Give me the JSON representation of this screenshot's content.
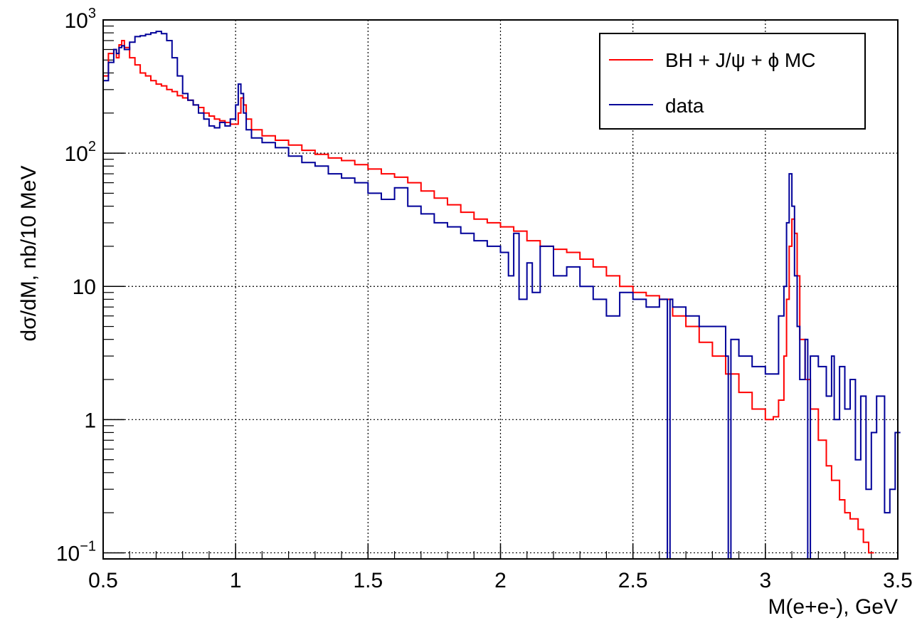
{
  "chart_data": {
    "type": "line",
    "title": "",
    "xlabel": "M(e+e-), GeV",
    "ylabel": "dσ/dM, nb/10 MeV",
    "xlim": [
      0.5,
      3.5
    ],
    "ylim": [
      0.09,
      1000
    ],
    "yscale": "log",
    "grid": true,
    "legend_position": "top-right",
    "x_ticks": [
      {
        "value": 0.5,
        "label": "0.5"
      },
      {
        "value": 1.0,
        "label": "1"
      },
      {
        "value": 1.5,
        "label": "1.5"
      },
      {
        "value": 2.0,
        "label": "2"
      },
      {
        "value": 2.5,
        "label": "2.5"
      },
      {
        "value": 3.0,
        "label": "3"
      },
      {
        "value": 3.5,
        "label": "3.5"
      }
    ],
    "y_ticks": [
      {
        "value": 0.1,
        "base": "10",
        "exp": "−1",
        "label": ""
      },
      {
        "value": 1,
        "base": "",
        "exp": "",
        "label": "1"
      },
      {
        "value": 10,
        "base": "",
        "exp": "",
        "label": "10"
      },
      {
        "value": 100,
        "base": "10",
        "exp": "2",
        "label": ""
      },
      {
        "value": 1000,
        "base": "10",
        "exp": "3",
        "label": ""
      }
    ],
    "series": [
      {
        "name": "BH + J/ψ + ϕ MC",
        "color": "#ff0000",
        "x": [
          0.5,
          0.52,
          0.54,
          0.55,
          0.56,
          0.57,
          0.58,
          0.6,
          0.62,
          0.64,
          0.66,
          0.68,
          0.7,
          0.72,
          0.74,
          0.76,
          0.78,
          0.8,
          0.82,
          0.84,
          0.86,
          0.88,
          0.9,
          0.92,
          0.94,
          0.96,
          0.98,
          1.0,
          1.01,
          1.02,
          1.03,
          1.04,
          1.06,
          1.1,
          1.15,
          1.2,
          1.25,
          1.3,
          1.35,
          1.4,
          1.45,
          1.5,
          1.55,
          1.6,
          1.65,
          1.7,
          1.75,
          1.8,
          1.85,
          1.9,
          1.95,
          2.0,
          2.05,
          2.1,
          2.15,
          2.2,
          2.25,
          2.3,
          2.35,
          2.4,
          2.45,
          2.5,
          2.55,
          2.6,
          2.65,
          2.7,
          2.75,
          2.8,
          2.85,
          2.9,
          2.95,
          3.0,
          3.03,
          3.05,
          3.07,
          3.08,
          3.09,
          3.1,
          3.11,
          3.12,
          3.13,
          3.15,
          3.17,
          3.2,
          3.23,
          3.25,
          3.28,
          3.3,
          3.32,
          3.35,
          3.37,
          3.39
        ],
        "y": [
          380,
          560,
          600,
          520,
          650,
          700,
          620,
          520,
          460,
          400,
          380,
          350,
          330,
          320,
          300,
          290,
          270,
          260,
          250,
          230,
          220,
          200,
          190,
          180,
          175,
          170,
          165,
          165,
          200,
          260,
          230,
          180,
          150,
          135,
          125,
          115,
          105,
          98,
          92,
          88,
          82,
          76,
          70,
          66,
          60,
          52,
          46,
          41,
          36,
          32,
          30,
          28,
          26,
          22,
          20,
          19,
          18,
          16,
          14,
          12,
          10,
          9,
          8.5,
          8,
          6,
          5,
          3.8,
          3,
          2.2,
          1.6,
          1.2,
          1.0,
          1.05,
          1.4,
          3,
          8,
          20,
          32,
          25,
          12,
          4,
          2,
          1.2,
          0.7,
          0.45,
          0.35,
          0.25,
          0.2,
          0.18,
          0.15,
          0.12,
          0.1
        ]
      },
      {
        "name": "data",
        "color": "#000099",
        "x": [
          0.5,
          0.52,
          0.54,
          0.55,
          0.56,
          0.57,
          0.58,
          0.6,
          0.62,
          0.64,
          0.66,
          0.68,
          0.7,
          0.72,
          0.74,
          0.76,
          0.78,
          0.8,
          0.82,
          0.84,
          0.86,
          0.88,
          0.9,
          0.92,
          0.94,
          0.96,
          0.98,
          1.0,
          1.01,
          1.02,
          1.03,
          1.04,
          1.06,
          1.1,
          1.15,
          1.2,
          1.25,
          1.3,
          1.35,
          1.4,
          1.45,
          1.5,
          1.55,
          1.6,
          1.65,
          1.7,
          1.75,
          1.8,
          1.85,
          1.9,
          1.95,
          2.0,
          2.03,
          2.05,
          2.07,
          2.1,
          2.12,
          2.15,
          2.2,
          2.25,
          2.3,
          2.35,
          2.4,
          2.45,
          2.5,
          2.55,
          2.6,
          2.63,
          2.64,
          2.65,
          2.7,
          2.75,
          2.8,
          2.85,
          2.86,
          2.87,
          2.9,
          2.95,
          3.0,
          3.05,
          3.07,
          3.08,
          3.09,
          3.1,
          3.11,
          3.12,
          3.13,
          3.15,
          3.16,
          3.17,
          3.2,
          3.23,
          3.25,
          3.26,
          3.28,
          3.3,
          3.32,
          3.34,
          3.36,
          3.38,
          3.4,
          3.42,
          3.45,
          3.47,
          3.49
        ],
        "y": [
          350,
          480,
          600,
          560,
          620,
          640,
          600,
          680,
          750,
          760,
          780,
          800,
          820,
          790,
          700,
          520,
          380,
          280,
          250,
          230,
          200,
          180,
          160,
          155,
          170,
          160,
          180,
          230,
          330,
          280,
          200,
          150,
          130,
          120,
          110,
          95,
          85,
          80,
          70,
          65,
          60,
          50,
          45,
          55,
          40,
          35,
          30,
          28,
          25,
          22,
          20,
          18,
          12,
          25,
          8,
          15,
          9,
          20,
          12,
          14,
          10,
          8,
          6,
          9,
          8,
          7,
          8,
          0.09,
          8,
          7,
          6,
          5,
          5,
          3,
          0.09,
          4,
          3,
          2.5,
          2.2,
          6,
          10,
          30,
          70,
          40,
          12,
          5,
          2,
          4,
          0.09,
          3,
          2.5,
          1.5,
          3,
          1,
          2.5,
          1.2,
          2,
          0.5,
          1.5,
          0.3,
          0.8,
          1.5,
          0.2,
          0.3,
          0.8
        ]
      }
    ]
  }
}
